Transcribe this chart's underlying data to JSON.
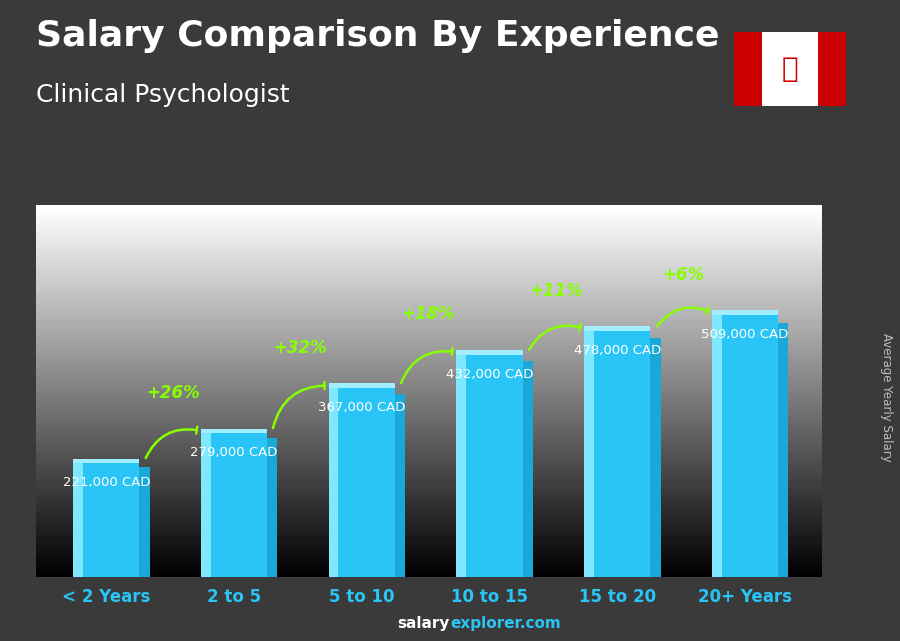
{
  "categories": [
    "< 2 Years",
    "2 to 5",
    "5 to 10",
    "10 to 15",
    "15 to 20",
    "20+ Years"
  ],
  "values": [
    221000,
    279000,
    367000,
    432000,
    478000,
    509000
  ],
  "labels": [
    "221,000 CAD",
    "279,000 CAD",
    "367,000 CAD",
    "432,000 CAD",
    "478,000 CAD",
    "509,000 CAD"
  ],
  "pct_changes": [
    "+26%",
    "+32%",
    "+18%",
    "+11%",
    "+6%"
  ],
  "bar_face_color": "#29C5F6",
  "bar_left_color": "#7EE8FF",
  "bar_dark_color": "#1AA8D8",
  "bar_top_color": "#55D5F5",
  "bg_top_color": "#4a4a4a",
  "bg_bottom_color": "#2a2a2a",
  "title": "Salary Comparison By Experience",
  "subtitle": "Clinical Psychologist",
  "ylabel": "Average Yearly Salary",
  "footer_salary": "salary",
  "footer_explorer": "explorer.com",
  "title_fontsize": 26,
  "subtitle_fontsize": 18,
  "pct_color": "#88FF00",
  "label_color": "#FFFFFF",
  "xlabel_color": "#29C5F6",
  "arrow_color": "#88FF00",
  "ylabel_color": "#CCCCCC",
  "footer_white": "#FFFFFF",
  "footer_cyan": "#29C5F6"
}
